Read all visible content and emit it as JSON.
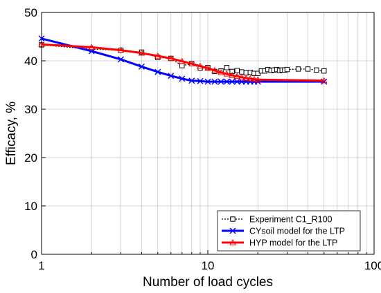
{
  "chart_data": {
    "type": "line",
    "title": "",
    "xlabel": "Number of load cycles",
    "ylabel": "Efficacy, %",
    "xscale": "log",
    "xlim": [
      1,
      100
    ],
    "ylim": [
      0,
      50
    ],
    "x_ticks": [
      1,
      10,
      100
    ],
    "x_tick_labels": [
      "1",
      "10",
      "100"
    ],
    "y_ticks": [
      0,
      10,
      20,
      30,
      40,
      50
    ],
    "y_tick_labels": [
      "0",
      "10",
      "20",
      "30",
      "40",
      "50"
    ],
    "grid": true,
    "legend_position": "bottom-right",
    "series": [
      {
        "name": "Experiment C1_R100",
        "color": "#000000",
        "line_style": "dotted",
        "marker": "square",
        "x": [
          1,
          2,
          3,
          4,
          5,
          6,
          7,
          8,
          9,
          10,
          11,
          12,
          13,
          14,
          15,
          16,
          17,
          18,
          19,
          20,
          21,
          22,
          23,
          24,
          25,
          26,
          27,
          28,
          29,
          30,
          35,
          40,
          45,
          50
        ],
        "y": [
          43.3,
          42.4,
          42.2,
          41.8,
          40.7,
          40.5,
          39.0,
          39.4,
          38.5,
          38.6,
          37.8,
          37.9,
          38.6,
          37.8,
          38.0,
          37.7,
          37.5,
          37.6,
          37.4,
          37.4,
          37.9,
          37.9,
          38.2,
          38.0,
          38.1,
          38.2,
          38.0,
          38.1,
          38.1,
          38.2,
          38.3,
          38.3,
          38.1,
          37.9
        ]
      },
      {
        "name": "CYsoil model for the LTP",
        "color": "#0000ff",
        "line_style": "solid",
        "marker": "x",
        "x": [
          1,
          2,
          3,
          4,
          5,
          6,
          7,
          8,
          9,
          10,
          11,
          12,
          13,
          14,
          15,
          16,
          17,
          18,
          19,
          20,
          50
        ],
        "y": [
          44.6,
          42.0,
          40.3,
          38.8,
          37.7,
          36.9,
          36.3,
          35.9,
          35.8,
          35.7,
          35.7,
          35.7,
          35.7,
          35.7,
          35.7,
          35.7,
          35.7,
          35.7,
          35.7,
          35.7,
          35.7
        ]
      },
      {
        "name": "HYP model for the LTP",
        "color": "#ff0000",
        "line_style": "solid",
        "marker": "triangle",
        "x": [
          1,
          2,
          3,
          4,
          5,
          6,
          7,
          8,
          9,
          10,
          11,
          12,
          13,
          14,
          15,
          16,
          17,
          18,
          19,
          20,
          50
        ],
        "y": [
          43.4,
          42.8,
          42.2,
          41.6,
          41.0,
          40.5,
          39.9,
          39.4,
          38.9,
          38.5,
          38.0,
          37.6,
          37.3,
          37.0,
          36.8,
          36.6,
          36.4,
          36.3,
          36.2,
          36.1,
          35.9
        ]
      }
    ]
  }
}
